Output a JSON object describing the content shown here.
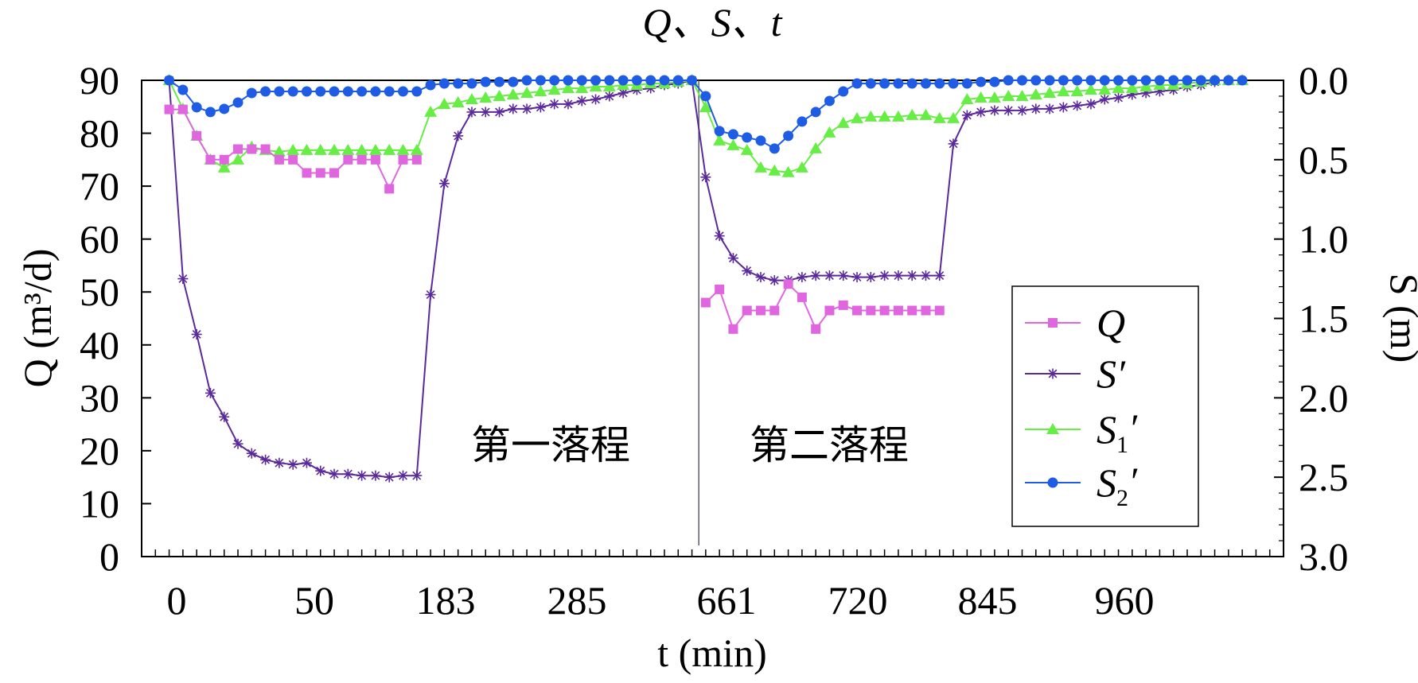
{
  "chart_data": {
    "type": "line",
    "title": "Q、S、t",
    "xlabel": "t (min)",
    "ylabel_left": "Q (m³/d)",
    "ylabel_right": "S (m)",
    "x_tick_labels": [
      "0",
      "50",
      "183",
      "285",
      "661",
      "720",
      "845",
      "960"
    ],
    "y_left_ticks": [
      0,
      10,
      20,
      30,
      40,
      50,
      60,
      70,
      80,
      90
    ],
    "y_left_range": [
      0,
      90
    ],
    "y_right_ticks": [
      "0.0",
      "0.5",
      "1.0",
      "1.5",
      "2.0",
      "2.5",
      "3.0"
    ],
    "y_right_range": [
      0,
      3
    ],
    "y_right_reversed": true,
    "annotations": [
      "第一落程",
      "第二落程"
    ],
    "legend_position": "right",
    "series": [
      {
        "name": "Q",
        "label_sub": "",
        "label_prime": "",
        "axis": "left",
        "marker": "square",
        "color": "#e066e0",
        "segments": [
          [
            [
              0,
              84.5
            ],
            [
              1,
              84.5
            ],
            [
              2,
              79.5
            ],
            [
              3,
              75
            ],
            [
              4,
              75
            ],
            [
              5,
              77
            ],
            [
              6,
              77
            ],
            [
              7,
              77
            ],
            [
              8,
              75
            ],
            [
              9,
              75
            ],
            [
              10,
              72.5
            ],
            [
              11,
              72.5
            ],
            [
              12,
              72.5
            ],
            [
              13,
              75
            ],
            [
              14,
              75
            ],
            [
              15,
              75
            ],
            [
              16,
              69.5
            ],
            [
              17,
              75
            ],
            [
              18,
              75
            ]
          ],
          [
            [
              39,
              48
            ],
            [
              40,
              50.5
            ],
            [
              41,
              43
            ],
            [
              42,
              46.5
            ],
            [
              43,
              46.5
            ],
            [
              44,
              46.5
            ],
            [
              45,
              51.5
            ],
            [
              46,
              49
            ],
            [
              47,
              43
            ],
            [
              48,
              46.5
            ],
            [
              49,
              47.5
            ],
            [
              50,
              46.5
            ],
            [
              51,
              46.5
            ],
            [
              52,
              46.5
            ],
            [
              53,
              46.5
            ],
            [
              54,
              46.5
            ],
            [
              55,
              46.5
            ],
            [
              56,
              46.5
            ]
          ]
        ]
      },
      {
        "name": "S",
        "label_sub": "",
        "label_prime": "′",
        "axis": "right",
        "marker": "star",
        "color": "#5b2a9a",
        "segments": [
          [
            [
              0,
              0.0
            ],
            [
              1,
              1.25
            ],
            [
              2,
              1.6
            ],
            [
              3,
              1.97
            ],
            [
              4,
              2.12
            ],
            [
              5,
              2.29
            ],
            [
              6,
              2.35
            ],
            [
              7,
              2.39
            ],
            [
              8,
              2.41
            ],
            [
              9,
              2.42
            ],
            [
              10,
              2.41
            ],
            [
              11,
              2.46
            ],
            [
              12,
              2.48
            ],
            [
              13,
              2.48
            ],
            [
              14,
              2.49
            ],
            [
              15,
              2.49
            ],
            [
              16,
              2.5
            ],
            [
              17,
              2.49
            ],
            [
              18,
              2.49
            ],
            [
              19,
              1.35
            ],
            [
              20,
              0.65
            ],
            [
              21,
              0.35
            ],
            [
              22,
              0.2
            ],
            [
              23,
              0.2
            ],
            [
              24,
              0.2
            ],
            [
              25,
              0.18
            ],
            [
              26,
              0.18
            ],
            [
              27,
              0.17
            ],
            [
              28,
              0.15
            ],
            [
              29,
              0.15
            ],
            [
              30,
              0.13
            ],
            [
              31,
              0.12
            ],
            [
              32,
              0.1
            ],
            [
              33,
              0.08
            ],
            [
              34,
              0.06
            ],
            [
              35,
              0.05
            ],
            [
              36,
              0.03
            ],
            [
              37,
              0.02
            ],
            [
              38,
              0.0
            ],
            [
              39,
              0.61
            ],
            [
              40,
              0.98
            ],
            [
              41,
              1.12
            ],
            [
              42,
              1.2
            ],
            [
              43,
              1.24
            ],
            [
              44,
              1.26
            ],
            [
              45,
              1.26
            ],
            [
              46,
              1.24
            ],
            [
              47,
              1.23
            ],
            [
              48,
              1.23
            ],
            [
              49,
              1.23
            ],
            [
              50,
              1.24
            ],
            [
              51,
              1.24
            ],
            [
              52,
              1.23
            ],
            [
              53,
              1.23
            ],
            [
              54,
              1.23
            ],
            [
              55,
              1.23
            ],
            [
              56,
              1.23
            ],
            [
              57,
              0.4
            ],
            [
              58,
              0.22
            ],
            [
              59,
              0.2
            ],
            [
              60,
              0.19
            ],
            [
              61,
              0.19
            ],
            [
              62,
              0.19
            ],
            [
              63,
              0.18
            ],
            [
              64,
              0.18
            ],
            [
              65,
              0.17
            ],
            [
              66,
              0.16
            ],
            [
              67,
              0.15
            ],
            [
              68,
              0.12
            ],
            [
              69,
              0.11
            ],
            [
              70,
              0.09
            ],
            [
              71,
              0.08
            ],
            [
              72,
              0.07
            ],
            [
              73,
              0.06
            ],
            [
              74,
              0.04
            ],
            [
              75,
              0.03
            ],
            [
              76,
              0.01
            ]
          ]
        ]
      },
      {
        "name": "S",
        "label_sub": "1",
        "label_prime": "′",
        "axis": "right",
        "marker": "triangle",
        "color": "#66ee44",
        "segments": [
          [
            [
              0,
              0.0
            ],
            [
              1,
              0.18
            ],
            [
              2,
              0.35
            ],
            [
              3,
              0.5
            ],
            [
              4,
              0.55
            ],
            [
              5,
              0.5
            ],
            [
              6,
              0.42
            ],
            [
              7,
              0.44
            ],
            [
              8,
              0.45
            ],
            [
              9,
              0.44
            ],
            [
              10,
              0.44
            ],
            [
              11,
              0.44
            ],
            [
              12,
              0.44
            ],
            [
              13,
              0.44
            ],
            [
              14,
              0.44
            ],
            [
              15,
              0.44
            ],
            [
              16,
              0.44
            ],
            [
              17,
              0.44
            ],
            [
              18,
              0.44
            ],
            [
              19,
              0.2
            ],
            [
              20,
              0.15
            ],
            [
              21,
              0.14
            ],
            [
              22,
              0.12
            ],
            [
              23,
              0.11
            ],
            [
              24,
              0.1
            ],
            [
              25,
              0.09
            ],
            [
              26,
              0.08
            ],
            [
              27,
              0.07
            ],
            [
              28,
              0.06
            ],
            [
              29,
              0.05
            ],
            [
              30,
              0.05
            ],
            [
              31,
              0.04
            ],
            [
              32,
              0.04
            ],
            [
              33,
              0.03
            ],
            [
              34,
              0.03
            ],
            [
              35,
              0.02
            ],
            [
              36,
              0.02
            ],
            [
              37,
              0.01
            ],
            [
              38,
              0.0
            ],
            [
              39,
              0.17
            ],
            [
              40,
              0.38
            ],
            [
              41,
              0.41
            ],
            [
              42,
              0.44
            ],
            [
              43,
              0.55
            ],
            [
              44,
              0.57
            ],
            [
              45,
              0.58
            ],
            [
              46,
              0.55
            ],
            [
              47,
              0.43
            ],
            [
              48,
              0.33
            ],
            [
              49,
              0.27
            ],
            [
              50,
              0.24
            ],
            [
              51,
              0.23
            ],
            [
              52,
              0.23
            ],
            [
              53,
              0.23
            ],
            [
              54,
              0.22
            ],
            [
              55,
              0.22
            ],
            [
              56,
              0.24
            ],
            [
              57,
              0.24
            ],
            [
              58,
              0.12
            ],
            [
              59,
              0.11
            ],
            [
              60,
              0.11
            ],
            [
              61,
              0.1
            ],
            [
              62,
              0.1
            ],
            [
              63,
              0.09
            ],
            [
              64,
              0.08
            ],
            [
              65,
              0.07
            ],
            [
              66,
              0.07
            ],
            [
              67,
              0.06
            ],
            [
              68,
              0.06
            ],
            [
              69,
              0.05
            ],
            [
              70,
              0.05
            ],
            [
              71,
              0.04
            ],
            [
              72,
              0.03
            ],
            [
              73,
              0.03
            ],
            [
              74,
              0.02
            ],
            [
              75,
              0.01
            ],
            [
              76,
              0.0
            ],
            [
              77,
              0.0
            ],
            [
              78,
              0.0
            ]
          ]
        ]
      },
      {
        "name": "S",
        "label_sub": "2",
        "label_prime": "′",
        "axis": "right",
        "marker": "circle",
        "color": "#1f5ce6",
        "segments": [
          [
            [
              0,
              0.0
            ],
            [
              1,
              0.06
            ],
            [
              2,
              0.17
            ],
            [
              3,
              0.2
            ],
            [
              4,
              0.18
            ],
            [
              5,
              0.14
            ],
            [
              6,
              0.08
            ],
            [
              7,
              0.07
            ],
            [
              8,
              0.07
            ],
            [
              9,
              0.07
            ],
            [
              10,
              0.07
            ],
            [
              11,
              0.07
            ],
            [
              12,
              0.07
            ],
            [
              13,
              0.07
            ],
            [
              14,
              0.07
            ],
            [
              15,
              0.07
            ],
            [
              16,
              0.07
            ],
            [
              17,
              0.07
            ],
            [
              18,
              0.07
            ],
            [
              19,
              0.03
            ],
            [
              20,
              0.02
            ],
            [
              21,
              0.02
            ],
            [
              22,
              0.02
            ],
            [
              23,
              0.01
            ],
            [
              24,
              0.01
            ],
            [
              25,
              0.01
            ],
            [
              26,
              0.0
            ],
            [
              27,
              0.0
            ],
            [
              28,
              0.0
            ],
            [
              29,
              0.0
            ],
            [
              30,
              0.0
            ],
            [
              31,
              0.0
            ],
            [
              32,
              0.0
            ],
            [
              33,
              0.0
            ],
            [
              34,
              0.0
            ],
            [
              35,
              0.0
            ],
            [
              36,
              0.0
            ],
            [
              37,
              0.0
            ],
            [
              38,
              0.0
            ],
            [
              39,
              0.1
            ],
            [
              40,
              0.32
            ],
            [
              41,
              0.34
            ],
            [
              42,
              0.36
            ],
            [
              43,
              0.38
            ],
            [
              44,
              0.43
            ],
            [
              45,
              0.35
            ],
            [
              46,
              0.26
            ],
            [
              47,
              0.2
            ],
            [
              48,
              0.13
            ],
            [
              49,
              0.07
            ],
            [
              50,
              0.02
            ],
            [
              51,
              0.02
            ],
            [
              52,
              0.02
            ],
            [
              53,
              0.02
            ],
            [
              54,
              0.02
            ],
            [
              55,
              0.02
            ],
            [
              56,
              0.02
            ],
            [
              57,
              0.02
            ],
            [
              58,
              0.02
            ],
            [
              59,
              0.01
            ],
            [
              60,
              0.01
            ],
            [
              61,
              0.0
            ],
            [
              62,
              0.0
            ],
            [
              63,
              0.0
            ],
            [
              64,
              0.0
            ],
            [
              65,
              0.0
            ],
            [
              66,
              0.0
            ],
            [
              67,
              0.0
            ],
            [
              68,
              0.0
            ],
            [
              69,
              0.0
            ],
            [
              70,
              0.0
            ],
            [
              71,
              0.0
            ],
            [
              72,
              0.0
            ],
            [
              73,
              0.0
            ],
            [
              74,
              0.0
            ],
            [
              75,
              0.0
            ],
            [
              76,
              0.0
            ],
            [
              77,
              0.0
            ],
            [
              78,
              0.0
            ]
          ]
        ]
      }
    ]
  }
}
